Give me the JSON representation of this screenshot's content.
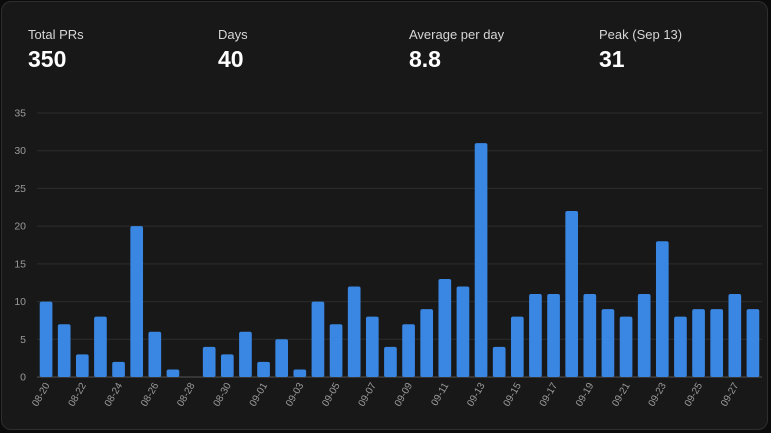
{
  "stats": [
    {
      "label": "Total PRs",
      "value": "350"
    },
    {
      "label": "Days",
      "value": "40"
    },
    {
      "label": "Average per day",
      "value": "8.8"
    },
    {
      "label": "Peak (Sep 13)",
      "value": "31"
    }
  ],
  "colors": {
    "bar": "#3a86e3",
    "grid": "#2c2c2c",
    "axis": "#555555"
  },
  "chart_data": {
    "type": "bar",
    "title": "",
    "xlabel": "",
    "ylabel": "",
    "ylim": [
      0,
      35
    ],
    "yticks": [
      0,
      5,
      10,
      15,
      20,
      25,
      30,
      35
    ],
    "grid": true,
    "categories": [
      "08-20",
      "08-21",
      "08-22",
      "08-23",
      "08-24",
      "08-25",
      "08-26",
      "08-27",
      "08-28",
      "08-29",
      "08-30",
      "08-31",
      "09-01",
      "09-02",
      "09-03",
      "09-04",
      "09-05",
      "09-06",
      "09-07",
      "09-08",
      "09-09",
      "09-10",
      "09-11",
      "09-12",
      "09-13",
      "09-14",
      "09-15",
      "09-16",
      "09-17",
      "09-18",
      "09-19",
      "09-20",
      "09-21",
      "09-22",
      "09-23",
      "09-24",
      "09-25",
      "09-26",
      "09-27",
      "09-28"
    ],
    "values": [
      10,
      7,
      3,
      8,
      2,
      20,
      6,
      1,
      0,
      4,
      3,
      6,
      2,
      5,
      1,
      10,
      7,
      12,
      8,
      4,
      7,
      9,
      13,
      12,
      31,
      4,
      8,
      11,
      11,
      22,
      11,
      9,
      8,
      11,
      18,
      8,
      9,
      9,
      11,
      9
    ],
    "tick_labels": [
      "08-20",
      "08-22",
      "08-24",
      "08-26",
      "08-28",
      "08-30",
      "09-01",
      "09-03",
      "09-05",
      "09-07",
      "09-09",
      "09-11",
      "09-13",
      "09-15",
      "09-17",
      "09-19",
      "09-21",
      "09-23",
      "09-25",
      "09-27"
    ]
  }
}
